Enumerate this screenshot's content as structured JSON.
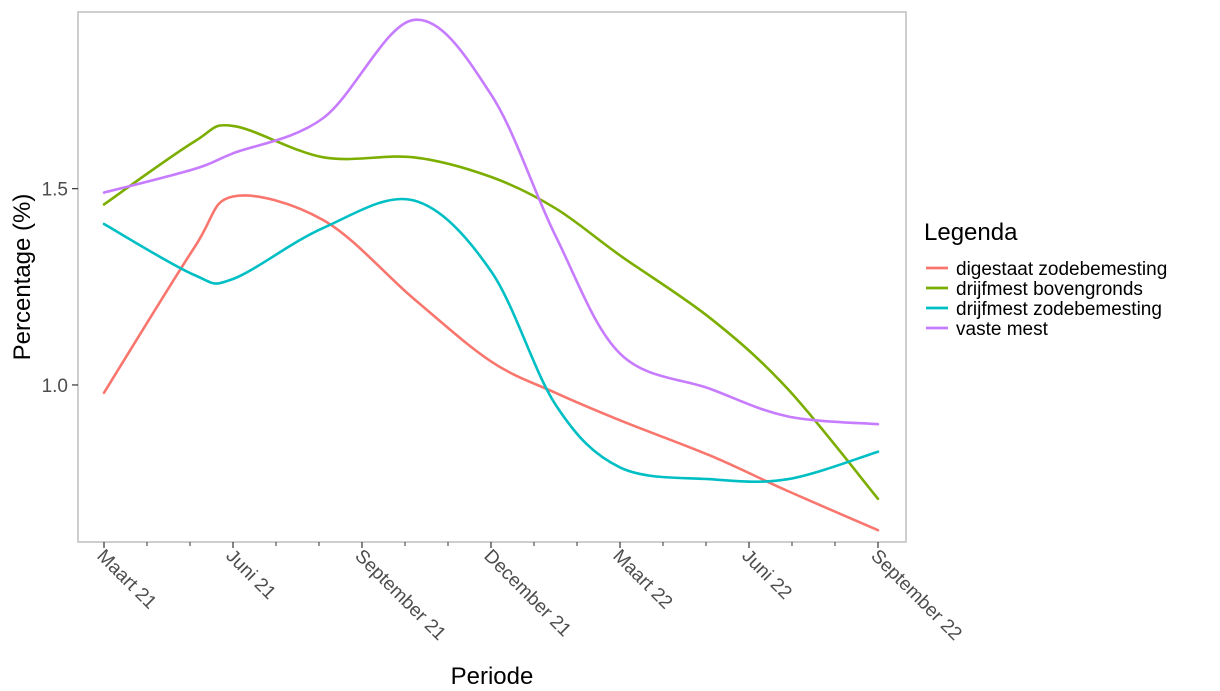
{
  "chart_data": {
    "type": "line",
    "xlabel": "Periode",
    "ylabel": "Percentage (%)",
    "x_ticks": [
      "Maart 21",
      "Juni 21",
      "September 21",
      "December 21",
      "Maart 22",
      "Juni 22",
      "September 22"
    ],
    "y_ticks": [
      "1.0",
      "1.5"
    ],
    "y_tick_values": [
      1.0,
      1.5
    ],
    "ylim": [
      0.6,
      1.95
    ],
    "grid": false,
    "legend": {
      "title": "Legenda",
      "position": "right"
    },
    "series": [
      {
        "name": "digestaat zodebemesting",
        "color": "#f8766d",
        "values": [
          0.98,
          1.35,
          1.48,
          1.42,
          1.22,
          1.06,
          0.98,
          0.91,
          0.82,
          0.73,
          0.63
        ]
      },
      {
        "name": "drijfmest bovengronds",
        "color": "#7cae00",
        "values": [
          1.46,
          1.62,
          1.66,
          1.58,
          1.58,
          1.53,
          1.45,
          1.33,
          1.17,
          0.99,
          0.71
        ]
      },
      {
        "name": "drijfmest zodebemesting",
        "color": "#00bfc4",
        "values": [
          1.41,
          1.28,
          1.27,
          1.4,
          1.47,
          1.29,
          0.95,
          0.79,
          0.76,
          0.76,
          0.83
        ]
      },
      {
        "name": "vaste mest",
        "color": "#c77cff",
        "values": [
          1.49,
          1.55,
          1.59,
          1.68,
          1.93,
          1.74,
          1.38,
          1.08,
          0.99,
          0.92,
          0.9
        ]
      }
    ],
    "x_positions": [
      0,
      0.7,
      1.0,
      1.7,
      2.4,
      3.0,
      3.5,
      4.0,
      4.7,
      5.3,
      6.0
    ]
  }
}
